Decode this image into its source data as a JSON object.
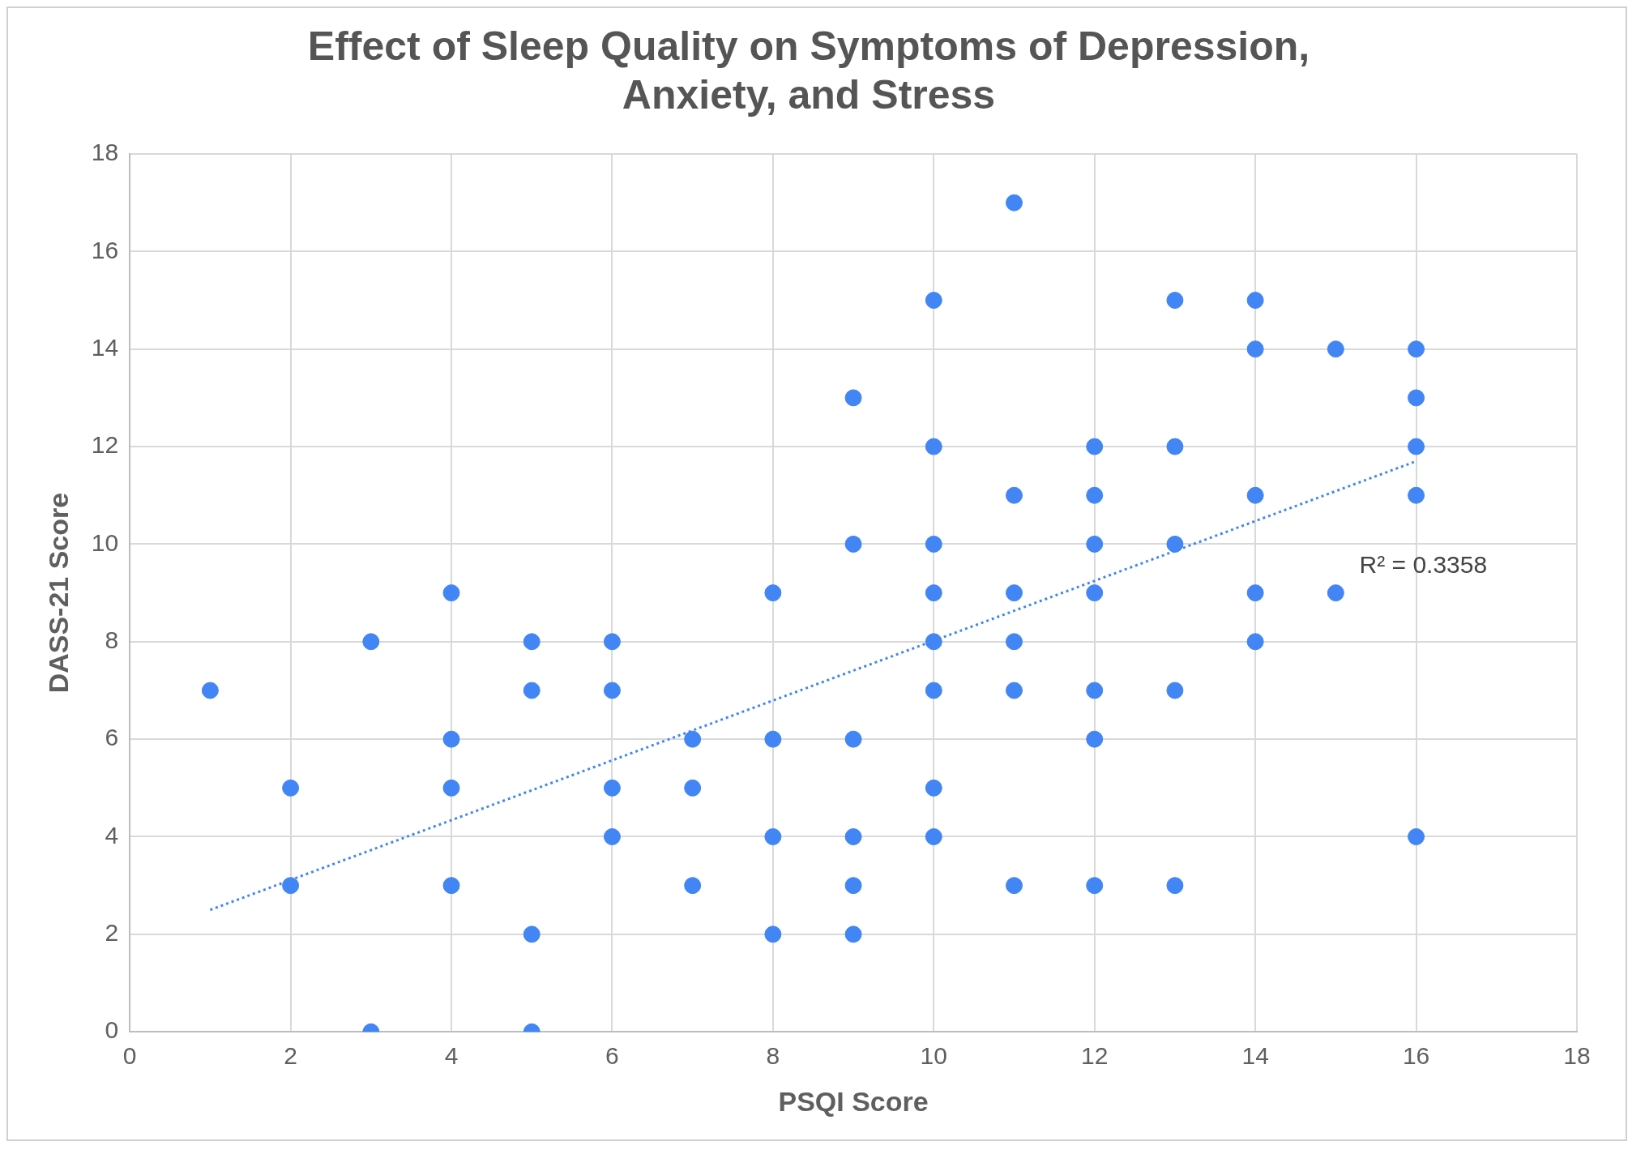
{
  "chart_data": {
    "type": "scatter",
    "title": "Effect of Sleep Quality on Symptoms of Depression, Anxiety, and Stress",
    "xlabel": "PSQI Score",
    "ylabel": "DASS-21 Score",
    "xlim": [
      0,
      18
    ],
    "xticks": [
      0,
      2,
      4,
      6,
      8,
      10,
      12,
      14,
      16,
      18
    ],
    "ylim": [
      0,
      18
    ],
    "yticks": [
      0,
      2,
      4,
      6,
      8,
      10,
      12,
      14,
      16,
      18
    ],
    "grid": true,
    "marker": "circle",
    "series": [
      {
        "color": "#4285f4",
        "x": [
          1,
          2,
          2,
          3,
          3,
          4,
          4,
          4,
          4,
          5,
          5,
          5,
          5,
          6,
          6,
          6,
          6,
          7,
          7,
          7,
          8,
          8,
          8,
          8,
          9,
          9,
          9,
          9,
          9,
          9,
          10,
          10,
          10,
          10,
          10,
          10,
          10,
          10,
          11,
          11,
          11,
          11,
          11,
          11,
          12,
          12,
          12,
          12,
          12,
          12,
          12,
          13,
          13,
          13,
          13,
          13,
          14,
          14,
          14,
          14,
          14,
          15,
          15,
          16,
          16,
          16,
          16,
          16
        ],
        "values": [
          7,
          5,
          3,
          8,
          0,
          9,
          6,
          5,
          3,
          8,
          7,
          2,
          0,
          8,
          7,
          5,
          4,
          6,
          5,
          3,
          9,
          6,
          4,
          2,
          13,
          10,
          6,
          4,
          3,
          2,
          15,
          12,
          10,
          9,
          8,
          7,
          5,
          4,
          17,
          11,
          9,
          8,
          7,
          3,
          12,
          11,
          10,
          9,
          7,
          6,
          3,
          15,
          12,
          10,
          7,
          3,
          15,
          14,
          11,
          9,
          8,
          14,
          9,
          14,
          13,
          12,
          11,
          4
        ]
      },
      {
        "type": "line",
        "color": "#4285f4",
        "line_style": "dotted",
        "marker": "none",
        "x": [
          1,
          16
        ],
        "values": [
          2.5,
          11.7
        ]
      }
    ],
    "annotations": [
      "R² = 0.3358"
    ]
  }
}
